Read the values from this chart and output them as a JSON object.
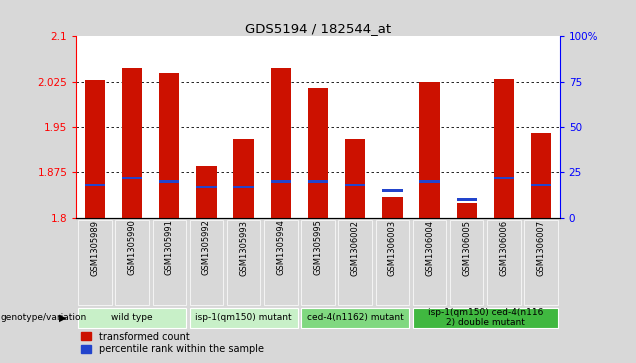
{
  "title": "GDS5194 / 182544_at",
  "samples": [
    "GSM1305989",
    "GSM1305990",
    "GSM1305991",
    "GSM1305992",
    "GSM1305993",
    "GSM1305994",
    "GSM1305995",
    "GSM1306002",
    "GSM1306003",
    "GSM1306004",
    "GSM1306005",
    "GSM1306006",
    "GSM1306007"
  ],
  "red_values": [
    2.027,
    2.047,
    2.04,
    1.885,
    1.93,
    2.048,
    2.015,
    1.93,
    1.835,
    2.025,
    1.825,
    2.03,
    1.94
  ],
  "blue_values": [
    18,
    22,
    20,
    17,
    17,
    20,
    20,
    18,
    15,
    20,
    10,
    22,
    18
  ],
  "ymin": 1.8,
  "ymax": 2.1,
  "y2min": 0,
  "y2max": 100,
  "yticks": [
    1.8,
    1.875,
    1.95,
    2.025,
    2.1
  ],
  "ytick_labels": [
    "1.8",
    "1.875",
    "1.95",
    "2.025",
    "2.1"
  ],
  "y2ticks": [
    0,
    25,
    50,
    75,
    100
  ],
  "y2tick_labels": [
    "0",
    "25",
    "50",
    "75",
    "100%"
  ],
  "grid_values": [
    1.875,
    1.95,
    2.025
  ],
  "bar_color": "#cc1100",
  "blue_color": "#2244cc",
  "bar_width": 0.55,
  "groups": [
    {
      "label": "wild type",
      "indices": [
        0,
        1,
        2
      ],
      "color": "#c8f0c8"
    },
    {
      "label": "isp-1(qm150) mutant",
      "indices": [
        3,
        4,
        5
      ],
      "color": "#c8f0c8"
    },
    {
      "label": "ced-4(n1162) mutant",
      "indices": [
        6,
        7,
        8
      ],
      "color": "#80d880"
    },
    {
      "label": "isp-1(qm150) ced-4(n116\n2) double mutant",
      "indices": [
        9,
        10,
        11,
        12
      ],
      "color": "#40b840"
    }
  ],
  "genotype_label": "genotype/variation",
  "legend_red": "transformed count",
  "legend_blue": "percentile rank within the sample",
  "fig_bg": "#d8d8d8",
  "plot_bg": "#ffffff",
  "group_panel_bg": "#c8c8c8",
  "ax_color": "red",
  "ax2_color": "blue"
}
